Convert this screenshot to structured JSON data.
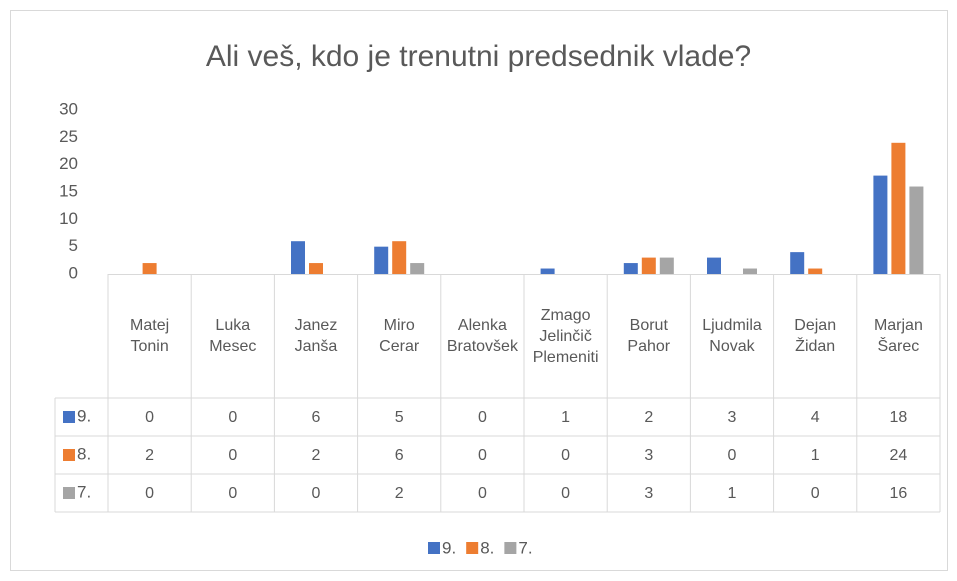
{
  "chart_data": {
    "type": "bar",
    "title": "Ali veš, kdo je trenutni predsednik vlade?",
    "categories": [
      "Matej Tonin",
      "Luka Mesec",
      "Janez Janša",
      "Miro Cerar",
      "Alenka Bratovšek",
      "Zmago Jelinčič Plemeniti",
      "Borut Pahor",
      "Ljudmila Novak",
      "Dejan Židan",
      "Marjan Šarec"
    ],
    "series": [
      {
        "name": "9.",
        "color": "#4472c4",
        "values": [
          0,
          0,
          6,
          5,
          0,
          1,
          2,
          3,
          4,
          18
        ]
      },
      {
        "name": "8.",
        "color": "#ed7d31",
        "values": [
          2,
          0,
          2,
          6,
          0,
          0,
          3,
          0,
          1,
          24
        ]
      },
      {
        "name": "7.",
        "color": "#a5a5a5",
        "values": [
          0,
          0,
          0,
          2,
          0,
          0,
          3,
          1,
          0,
          16
        ]
      }
    ],
    "ylim": [
      0,
      30
    ],
    "yticks": [
      0,
      5,
      10,
      15,
      20,
      25,
      30
    ],
    "grid": false,
    "data_table": true,
    "legend": "bottom"
  }
}
